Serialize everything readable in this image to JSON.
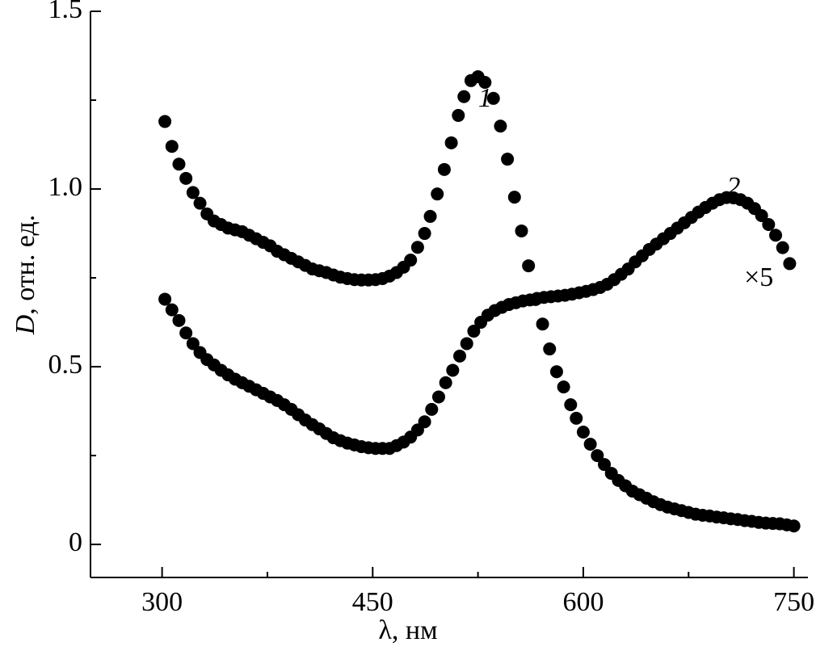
{
  "chart_data": {
    "type": "scatter",
    "xlabel_symbol": "λ",
    "xlabel_unit": ", нм",
    "ylabel_symbol": "D",
    "ylabel_unit": ", отн. ед.",
    "xlim": [
      249,
      760
    ],
    "ylim": [
      -0.093,
      1.5
    ],
    "xticks": [
      300,
      450,
      600,
      750
    ],
    "yticks": [
      0,
      0.5,
      {
        "value": 1.0,
        "label": "1.0"
      },
      1.5
    ],
    "xminor_ticks": [
      375,
      525,
      675
    ],
    "yminor_ticks": [
      0.25,
      0.75,
      1.25
    ],
    "annotations": [
      {
        "text": "1",
        "x": 530,
        "y": 1.25
      },
      {
        "text": "2",
        "x": 707,
        "y": 1.0
      },
      {
        "text": "×5",
        "x": 725,
        "y": 0.745
      }
    ],
    "series": [
      {
        "color": "#000000",
        "x": [
          302,
          307,
          312,
          317,
          322,
          327,
          332,
          337,
          342,
          347,
          352,
          357,
          362,
          367,
          372,
          377,
          382,
          387,
          392,
          397,
          402,
          407,
          412,
          417,
          422,
          427,
          432,
          437,
          442,
          447,
          452,
          457,
          462,
          467,
          472,
          477,
          482,
          487,
          491,
          496,
          501,
          506,
          511,
          515,
          520,
          525,
          530,
          536,
          541,
          546,
          551,
          556,
          561,
          566,
          571,
          576,
          581,
          586,
          591,
          595,
          600,
          605,
          610,
          615,
          620,
          625,
          630,
          635,
          640,
          645,
          650,
          655,
          660,
          665,
          670,
          675,
          680,
          685,
          690,
          695,
          700,
          705,
          710,
          715,
          720,
          725,
          730,
          735,
          740,
          745,
          750
        ],
        "values": [
          1.19,
          1.12,
          1.07,
          1.03,
          0.99,
          0.96,
          0.93,
          0.91,
          0.9,
          0.89,
          0.885,
          0.88,
          0.87,
          0.86,
          0.85,
          0.84,
          0.825,
          0.815,
          0.805,
          0.795,
          0.785,
          0.775,
          0.77,
          0.765,
          0.758,
          0.752,
          0.748,
          0.745,
          0.744,
          0.744,
          0.745,
          0.748,
          0.755,
          0.765,
          0.78,
          0.8,
          0.836,
          0.875,
          0.923,
          0.986,
          1.055,
          1.13,
          1.207,
          1.26,
          1.305,
          1.316,
          1.3,
          1.255,
          1.177,
          1.084,
          0.977,
          0.882,
          0.784,
          0.689,
          0.62,
          0.55,
          0.486,
          0.443,
          0.393,
          0.355,
          0.316,
          0.282,
          0.25,
          0.225,
          0.2,
          0.18,
          0.165,
          0.15,
          0.14,
          0.13,
          0.12,
          0.112,
          0.105,
          0.1,
          0.095,
          0.09,
          0.085,
          0.082,
          0.08,
          0.077,
          0.075,
          0.072,
          0.07,
          0.067,
          0.065,
          0.062,
          0.06,
          0.059,
          0.058,
          0.055,
          0.052
        ]
      },
      {
        "color": "#000000",
        "x": [
          302,
          307,
          312,
          317,
          322,
          327,
          332,
          337,
          342,
          347,
          352,
          357,
          362,
          367,
          372,
          377,
          382,
          387,
          392,
          397,
          402,
          407,
          412,
          417,
          422,
          427,
          432,
          437,
          442,
          447,
          452,
          457,
          462,
          467,
          472,
          477,
          482,
          487,
          492,
          497,
          502,
          507,
          512,
          517,
          522,
          527,
          532,
          537,
          542,
          547,
          552,
          557,
          562,
          567,
          572,
          577,
          582,
          587,
          592,
          597,
          602,
          607,
          612,
          617,
          622,
          627,
          632,
          637,
          642,
          647,
          652,
          657,
          662,
          667,
          672,
          677,
          682,
          687,
          692,
          697,
          702,
          707,
          712,
          717,
          722,
          727,
          732,
          737,
          742,
          747
        ],
        "values": [
          0.69,
          0.66,
          0.63,
          0.595,
          0.565,
          0.54,
          0.52,
          0.505,
          0.49,
          0.477,
          0.465,
          0.455,
          0.445,
          0.435,
          0.425,
          0.415,
          0.405,
          0.393,
          0.38,
          0.365,
          0.35,
          0.337,
          0.325,
          0.312,
          0.3,
          0.292,
          0.285,
          0.28,
          0.275,
          0.272,
          0.27,
          0.27,
          0.27,
          0.278,
          0.288,
          0.302,
          0.322,
          0.345,
          0.38,
          0.415,
          0.455,
          0.49,
          0.53,
          0.565,
          0.6,
          0.625,
          0.645,
          0.658,
          0.667,
          0.675,
          0.68,
          0.685,
          0.688,
          0.692,
          0.695,
          0.697,
          0.699,
          0.701,
          0.704,
          0.708,
          0.712,
          0.717,
          0.723,
          0.732,
          0.745,
          0.76,
          0.775,
          0.795,
          0.812,
          0.83,
          0.845,
          0.86,
          0.875,
          0.89,
          0.905,
          0.92,
          0.935,
          0.948,
          0.96,
          0.97,
          0.976,
          0.975,
          0.97,
          0.96,
          0.945,
          0.925,
          0.9,
          0.87,
          0.835,
          0.79
        ]
      }
    ]
  }
}
